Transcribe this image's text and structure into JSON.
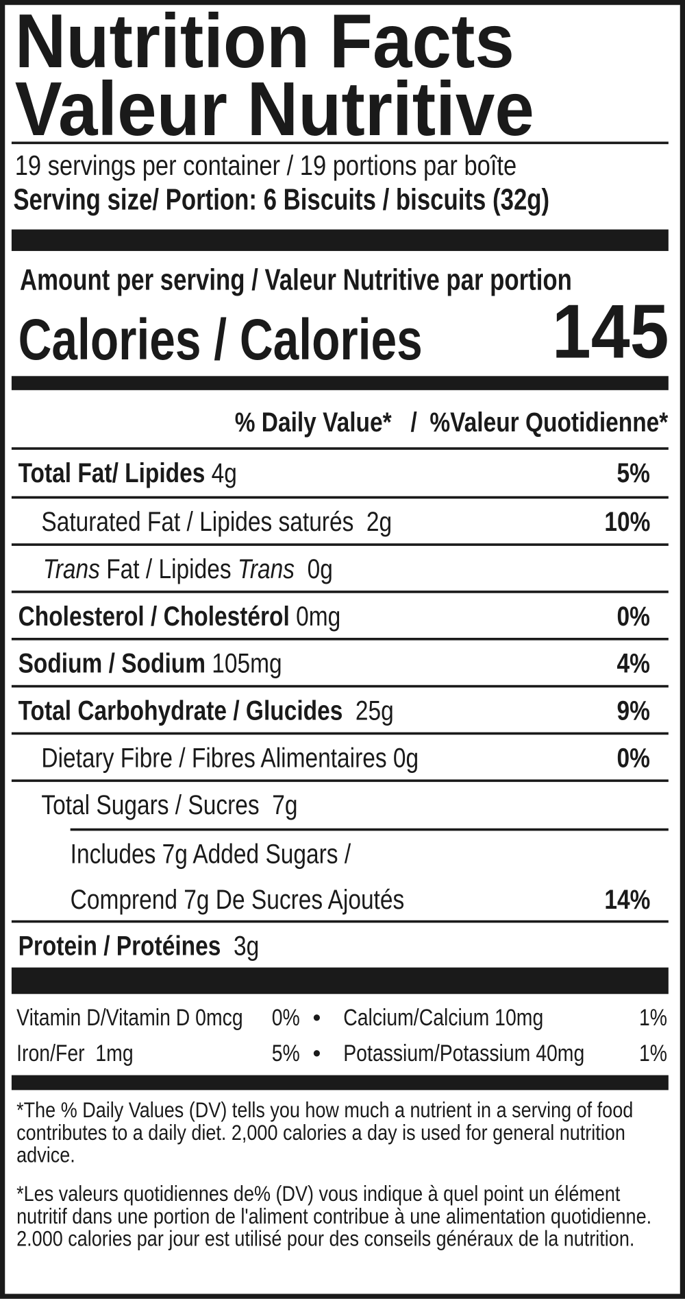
{
  "title_en": "Nutrition Facts",
  "title_fr": "Valeur Nutritive",
  "servings": "19 servings per container / 19 portions par boîte",
  "serving_size": "Serving size/ Portion: 6 Biscuits / biscuits (32g)",
  "amount_per_serving": "Amount per serving / Valeur Nutritive par portion",
  "calories_label": "Calories / Calories",
  "calories_value": "145",
  "dv_header": "% Daily Value*   /  %Valeur Quotidienne*",
  "rows": [
    {
      "name": "Total Fat/ Lipides",
      "amount": "4g",
      "dv": "5%"
    },
    {
      "name": "Saturated Fat / Lipides saturés",
      "amount": "2g",
      "dv": "10%"
    },
    {
      "name_italic1": "Trans",
      "name_mid": " Fat / Lipides ",
      "name_italic2": "Trans",
      "amount": "0g"
    },
    {
      "name": "Cholesterol / Cholestérol",
      "amount": "0mg",
      "dv": "0%"
    },
    {
      "name": "Sodium / Sodium",
      "amount": "105mg",
      "dv": "4%"
    },
    {
      "name": "Total Carbohydrate / Glucides",
      "amount": "25g",
      "dv": "9%"
    },
    {
      "name": "Dietary Fibre / Fibres Alimentaires",
      "amount": "0g",
      "dv": "0%"
    },
    {
      "name": "Total Sugars / Sucres",
      "amount": "7g"
    },
    {
      "line1": "Includes 7g Added Sugars /",
      "line2": "Comprend 7g De Sucres Ajoutés",
      "dv": "14%"
    },
    {
      "name": "Protein / Protéines",
      "amount": "3g"
    }
  ],
  "vitamins": [
    {
      "label": "Vitamin D/Vitamin D 0mcg",
      "dv": "0%"
    },
    {
      "label": "Calcium/Calcium 10mg",
      "dv": "1%"
    },
    {
      "label": "Iron/Fer  1mg",
      "dv": "5%"
    },
    {
      "label": "Potassium/Potassium 40mg",
      "dv": "1%"
    }
  ],
  "bullet": "•",
  "footnote_en": "*The % Daily Values (DV) tells you how much a nutrient in a serving of food contributes to a daily diet. 2,000 calories a day is used for general nutrition advice.",
  "footnote_fr": "*Les valeurs quotidiennes de% (DV) vous indique à quel point un élément nutritif dans une portion de l'aliment contribue à une alimentation quotidienne. 2.000 calories par jour est utilisé pour des conseils généraux de la nutrition."
}
